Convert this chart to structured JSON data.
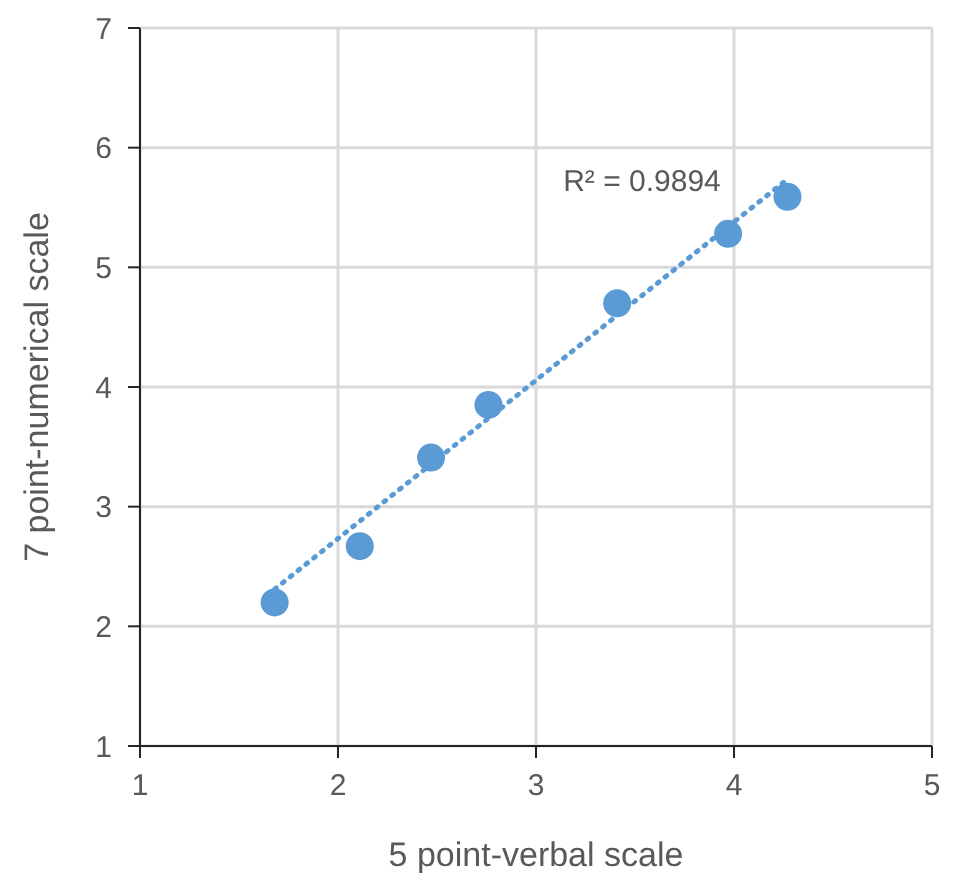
{
  "chart_data": {
    "type": "scatter",
    "xlabel": "5 point-verbal scale",
    "ylabel": "7 point-numerical scale",
    "xlim": [
      1,
      5
    ],
    "xticks": [
      1,
      2,
      3,
      4,
      5
    ],
    "ylim": [
      1,
      7
    ],
    "yticks": [
      1,
      2,
      3,
      4,
      5,
      6,
      7
    ],
    "grid": true,
    "marker": "circle",
    "series": [
      {
        "color": "#5b9bd5",
        "x": [
          1.68,
          2.11,
          2.47,
          2.76,
          3.41,
          3.97,
          4.27
        ],
        "values": [
          2.2,
          2.67,
          3.41,
          3.85,
          4.7,
          5.28,
          5.59
        ]
      },
      {
        "type": "line",
        "color": "#5b9bd5",
        "line_style": "dotted",
        "marker": "none",
        "x": [
          1.68,
          4.25
        ],
        "values": [
          2.31,
          5.71
        ]
      }
    ],
    "annotations": [
      "R² = 0.9894"
    ]
  }
}
